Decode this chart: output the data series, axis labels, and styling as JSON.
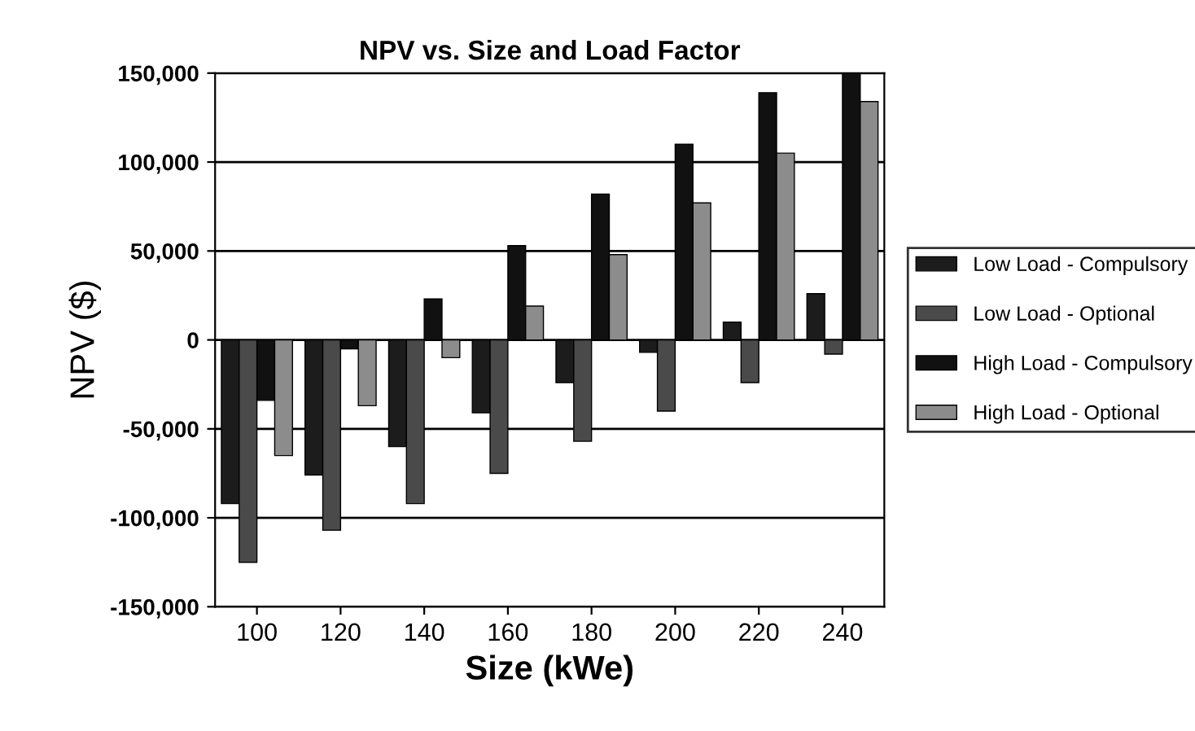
{
  "chart_data": {
    "type": "bar",
    "title": "NPV vs. Size and Load Factor",
    "xlabel": "Size (kWe)",
    "ylabel": "NPV ($)",
    "categories": [
      "100",
      "120",
      "140",
      "160",
      "180",
      "200",
      "220",
      "240"
    ],
    "series": [
      {
        "name": "Low Load - Compulsory",
        "color": "#1c1c1c",
        "values": [
          -92000,
          -76000,
          -60000,
          -41000,
          -24000,
          -7000,
          10000,
          26000
        ]
      },
      {
        "name": "Low Load - Optional",
        "color": "#4a4a4a",
        "values": [
          -125000,
          -107000,
          -92000,
          -75000,
          -57000,
          -40000,
          -24000,
          -8000
        ]
      },
      {
        "name": "High Load - Compulsory",
        "color": "#111111",
        "values": [
          -34000,
          -5000,
          23000,
          53000,
          82000,
          110000,
          139000,
          150000
        ]
      },
      {
        "name": "High Load - Optional",
        "color": "#8c8c8c",
        "values": [
          -65000,
          -37000,
          -10000,
          19000,
          48000,
          77000,
          105000,
          134000
        ]
      }
    ],
    "ylim": [
      -150000,
      150000
    ],
    "yticks": [
      {
        "value": -150000,
        "label": "-150,000"
      },
      {
        "value": -100000,
        "label": "-100,000"
      },
      {
        "value": -50000,
        "label": "-50,000"
      },
      0,
      {
        "value": 50000,
        "label": "50,000"
      },
      {
        "value": 100000,
        "label": "100,000"
      },
      {
        "value": 150000,
        "label": "150,000"
      }
    ],
    "grid": "y",
    "legend": "right"
  }
}
